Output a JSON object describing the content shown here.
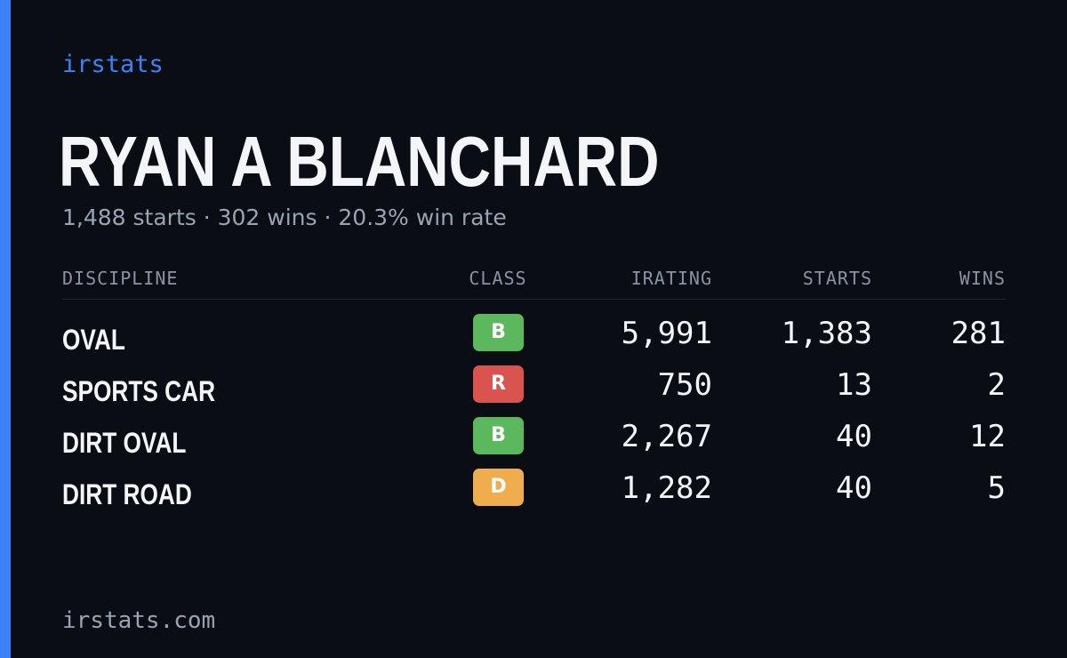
{
  "brand": "irstats",
  "player": {
    "name": "RYAN A BLANCHARD",
    "summary": "1,488 starts · 302 wins · 20.3% win rate"
  },
  "table": {
    "headers": {
      "discipline": "DISCIPLINE",
      "class": "CLASS",
      "irating": "IRATING",
      "starts": "STARTS",
      "wins": "WINS"
    },
    "rows": [
      {
        "discipline": "OVAL",
        "class": "B",
        "class_color": "#5cb85c",
        "irating": "5,991",
        "starts": "1,383",
        "wins": "281"
      },
      {
        "discipline": "SPORTS CAR",
        "class": "R",
        "class_color": "#d9534f",
        "irating": "750",
        "starts": "13",
        "wins": "2"
      },
      {
        "discipline": "DIRT OVAL",
        "class": "B",
        "class_color": "#5cb85c",
        "irating": "2,267",
        "starts": "40",
        "wins": "12"
      },
      {
        "discipline": "DIRT ROAD",
        "class": "D",
        "class_color": "#f0ad4e",
        "irating": "1,282",
        "starts": "40",
        "wins": "5"
      }
    ]
  },
  "footer": "irstats.com",
  "colors": {
    "background": "#0b0d14",
    "accent": "#3b82f6",
    "text": "#f4f5f8",
    "muted": "#9aa3b2"
  }
}
